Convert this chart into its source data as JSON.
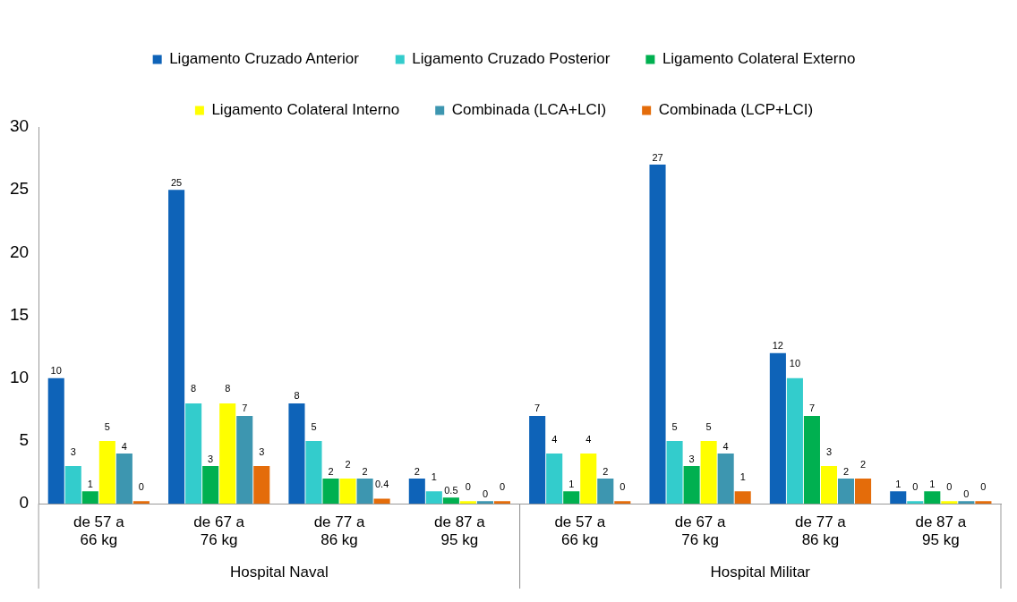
{
  "chart_data": {
    "type": "bar",
    "categories": [
      "de 57 a 66 kg",
      "de 67 a 76 kg",
      "de 77 a 86 kg",
      "de 87 a 95 kg",
      "de 57 a 66 kg",
      "de 67 a 76 kg",
      "de 77 a 86 kg",
      "de 87 a 95 kg"
    ],
    "series": [
      {
        "name": "Ligamento Cruzado Anterior",
        "color": "#0e63b8",
        "values": [
          10,
          25,
          8,
          2,
          7,
          27,
          12,
          1
        ]
      },
      {
        "name": "Ligamento Cruzado Posterior",
        "color": "#33cccc",
        "values": [
          3,
          8,
          5,
          1,
          4,
          5,
          10,
          0
        ]
      },
      {
        "name": "Ligamento Colateral Externo",
        "color": "#00b050",
        "values": [
          1,
          3,
          2,
          0.5,
          1,
          3,
          7,
          1
        ]
      },
      {
        "name": "Ligamento Colateral Interno",
        "color": "#ffff00",
        "values": [
          5,
          8,
          2,
          0,
          4,
          5,
          3,
          0
        ]
      },
      {
        "name": "Combinada (LCA+LCI)",
        "color": "#3d96b0",
        "values": [
          4,
          7,
          2,
          0,
          2,
          4,
          2,
          0
        ]
      },
      {
        "name": "Combinada (LCP+LCI)",
        "color": "#e46c0a",
        "values": [
          0,
          3,
          0.4,
          0,
          0,
          1,
          2,
          0
        ]
      }
    ],
    "annotations": [
      "Hospital Naval",
      "Hospital Militar"
    ],
    "ylim": [
      0,
      30
    ],
    "yticks": [
      0,
      5,
      10,
      15,
      20,
      25,
      30
    ],
    "grid": false,
    "legend": "top",
    "data_labels": true
  }
}
